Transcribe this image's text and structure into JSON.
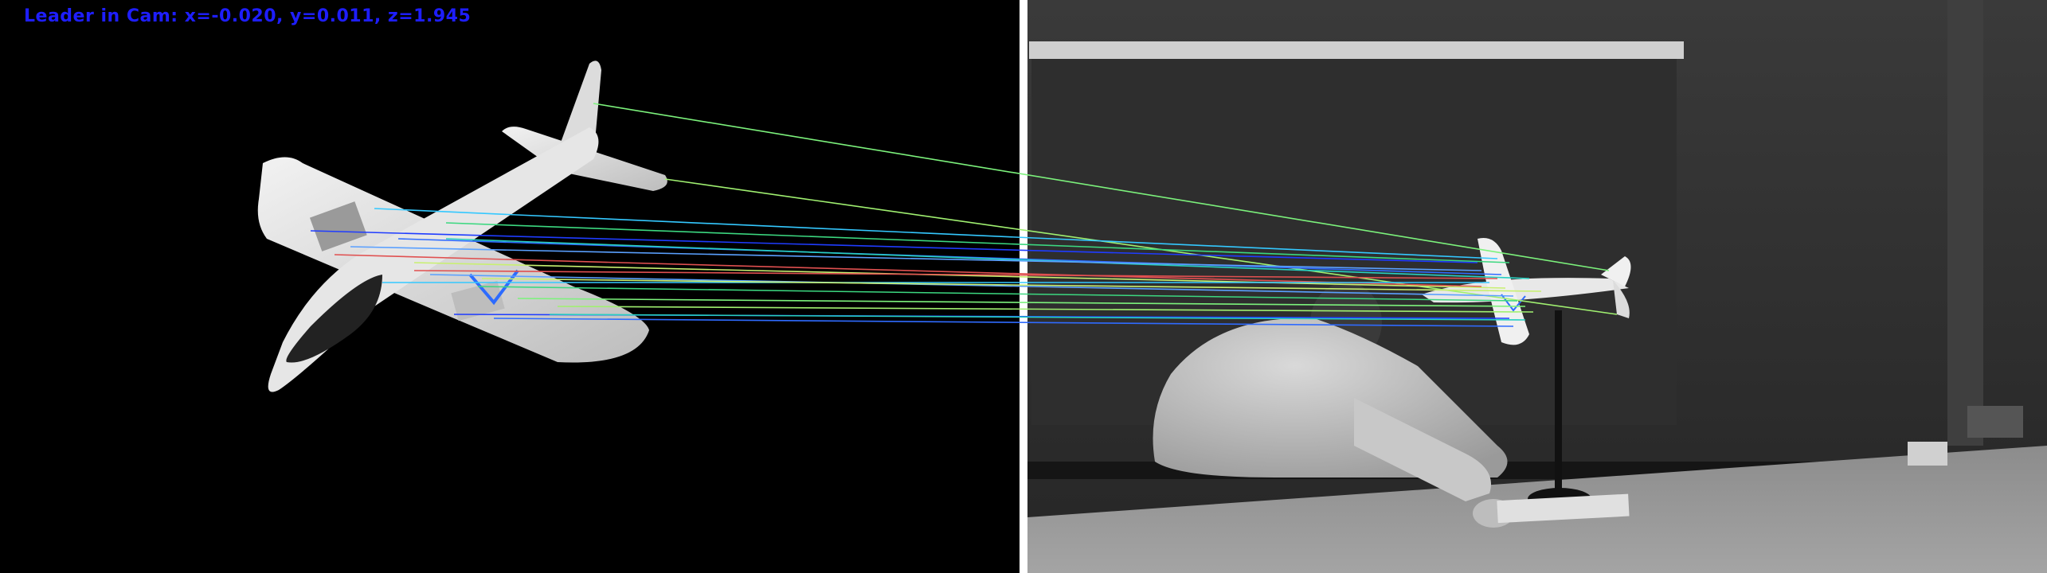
{
  "overlay": {
    "status_text": "Leader in Cam: x=-0.020, y=0.011, z=1.945",
    "status_color": "#1e1eff"
  },
  "panels": {
    "left": {
      "description_name": "reference-template-view",
      "background": "#000000"
    },
    "divider_color": "#ffffff",
    "right": {
      "description_name": "live-camera-view"
    }
  },
  "match_colors": [
    "#7cf27c",
    "#a0f070",
    "#34c8ff",
    "#1f3cff",
    "#2f6bff",
    "#28d0c0",
    "#e05050",
    "#c8f070",
    "#5aa0ff",
    "#3cd880"
  ]
}
